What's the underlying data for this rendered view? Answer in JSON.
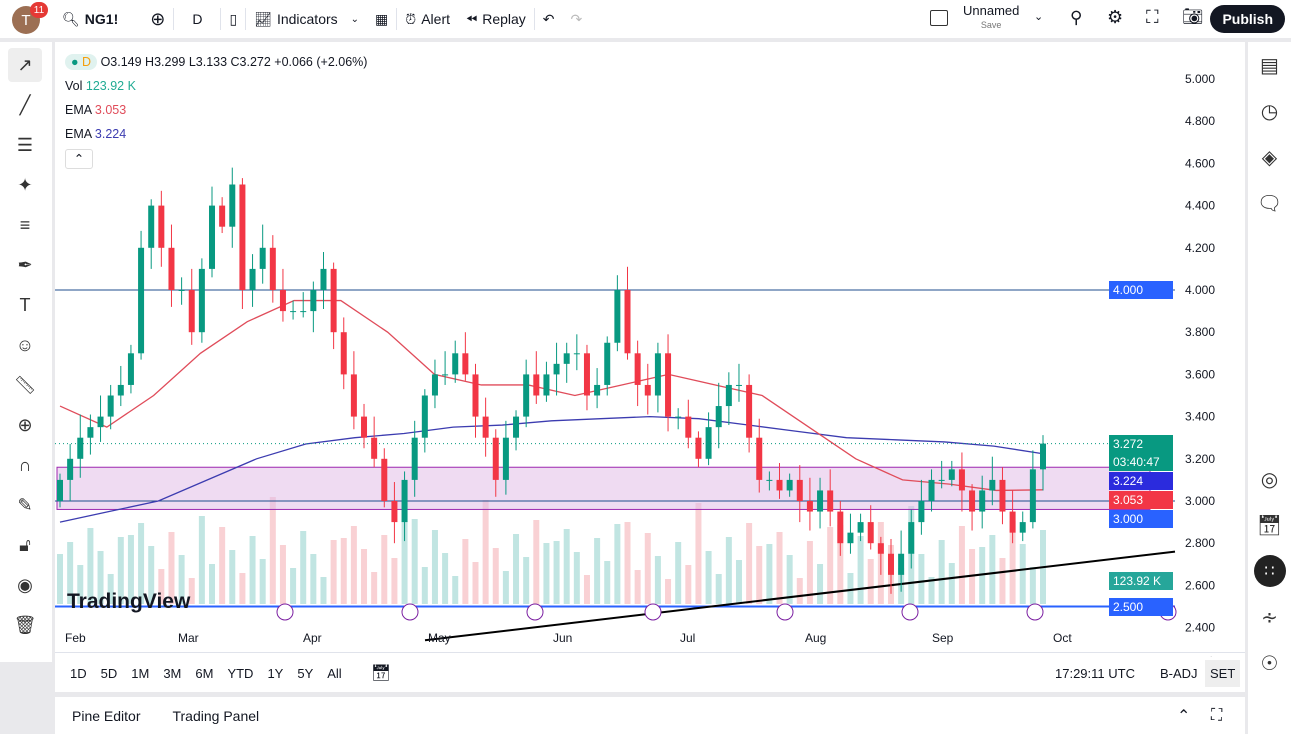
{
  "header": {
    "notifications": "11",
    "avatar_letter": "T",
    "symbol": "NG1!",
    "interval": "D",
    "indicators": "Indicators",
    "alert": "Alert",
    "replay": "Replay",
    "layout_name": "Unnamed",
    "layout_save": "Save",
    "publish": "Publish"
  },
  "legend": {
    "interval": "D",
    "ohlc": "O3.149 H3.299 L3.133 C3.272 +0.066 (+2.06%)",
    "vol_label": "Vol",
    "vol_value": "123.92 K",
    "ema1_label": "EMA",
    "ema1_value": "3.053",
    "ema2_label": "EMA",
    "ema2_value": "3.224"
  },
  "price_axis": {
    "ticks": [
      "5.000",
      "4.800",
      "4.600",
      "4.400",
      "4.200",
      "4.000",
      "3.800",
      "3.600",
      "3.400",
      "3.200",
      "3.000",
      "2.800",
      "2.600",
      "2.400"
    ],
    "labels": {
      "last": "3.272",
      "countdown": "03:40:47",
      "ema_blue": "3.224",
      "ema_red": "3.053",
      "level_3": "3.000",
      "level_4": "4.000",
      "volume": "123.92 K",
      "level_25": "2.500"
    }
  },
  "time_axis": {
    "ticks": [
      "Feb",
      "Mar",
      "Apr",
      "May",
      "Jun",
      "Jul",
      "Aug",
      "Sep",
      "Oct"
    ]
  },
  "watermark": "TradingView",
  "range_bar": {
    "ranges": [
      "1D",
      "5D",
      "1M",
      "3M",
      "6M",
      "YTD",
      "1Y",
      "5Y",
      "All"
    ],
    "time": "17:29:11 UTC",
    "badj": "B-ADJ",
    "session": "SET"
  },
  "bottom_panel": {
    "tabs": [
      "Pine Editor",
      "Trading Panel"
    ]
  },
  "colors": {
    "up": "#089981",
    "down": "#f23645",
    "ema_red": "#e04c5a",
    "ema_blue": "#3c3cb0",
    "zone": "#e1bee7",
    "accent": "#2962ff"
  },
  "chart_data": {
    "type": "candlestick",
    "closes": [
      3.1,
      3.2,
      3.3,
      3.35,
      3.4,
      3.5,
      3.55,
      3.7,
      4.2,
      4.4,
      4.2,
      4.0,
      4.0,
      3.8,
      4.1,
      4.4,
      4.3,
      4.5,
      4.0,
      4.1,
      4.2,
      4.0,
      3.9,
      3.9,
      3.9,
      4.0,
      4.1,
      3.8,
      3.6,
      3.4,
      3.3,
      3.2,
      3.0,
      2.9,
      3.1,
      3.3,
      3.5,
      3.6,
      3.6,
      3.7,
      3.6,
      3.4,
      3.3,
      3.1,
      3.3,
      3.4,
      3.6,
      3.5,
      3.6,
      3.65,
      3.7,
      3.7,
      3.5,
      3.55,
      3.75,
      4.0,
      3.7,
      3.55,
      3.5,
      3.7,
      3.4,
      3.4,
      3.3,
      3.2,
      3.35,
      3.45,
      3.55,
      3.55,
      3.3,
      3.1,
      3.1,
      3.05,
      3.1,
      3.0,
      2.95,
      3.05,
      2.95,
      2.8,
      2.85,
      2.9,
      2.8,
      2.75,
      2.65,
      2.75,
      2.9,
      3.0,
      3.1,
      3.1,
      3.15,
      3.05,
      2.95,
      3.05,
      3.1,
      2.95,
      2.85,
      2.9,
      3.15,
      3.272
    ],
    "ema_red": [
      3.45,
      3.35,
      3.5,
      3.7,
      3.85,
      3.95,
      3.95,
      3.8,
      3.6,
      3.55,
      3.55,
      3.5,
      3.55,
      3.6,
      3.55,
      3.5,
      3.35,
      3.2,
      3.1,
      3.08,
      3.05,
      3.053
    ],
    "ema_blue": [
      2.9,
      2.95,
      3.0,
      3.1,
      3.2,
      3.27,
      3.3,
      3.32,
      3.35,
      3.36,
      3.38,
      3.39,
      3.4,
      3.39,
      3.36,
      3.33,
      3.3,
      3.29,
      3.28,
      3.26,
      3.224
    ],
    "horizontal_levels": [
      4.0,
      3.0,
      2.5
    ],
    "zone": [
      2.96,
      3.16
    ],
    "trendline": [
      2.34,
      2.76
    ],
    "ylim": [
      2.4,
      5.05
    ]
  }
}
